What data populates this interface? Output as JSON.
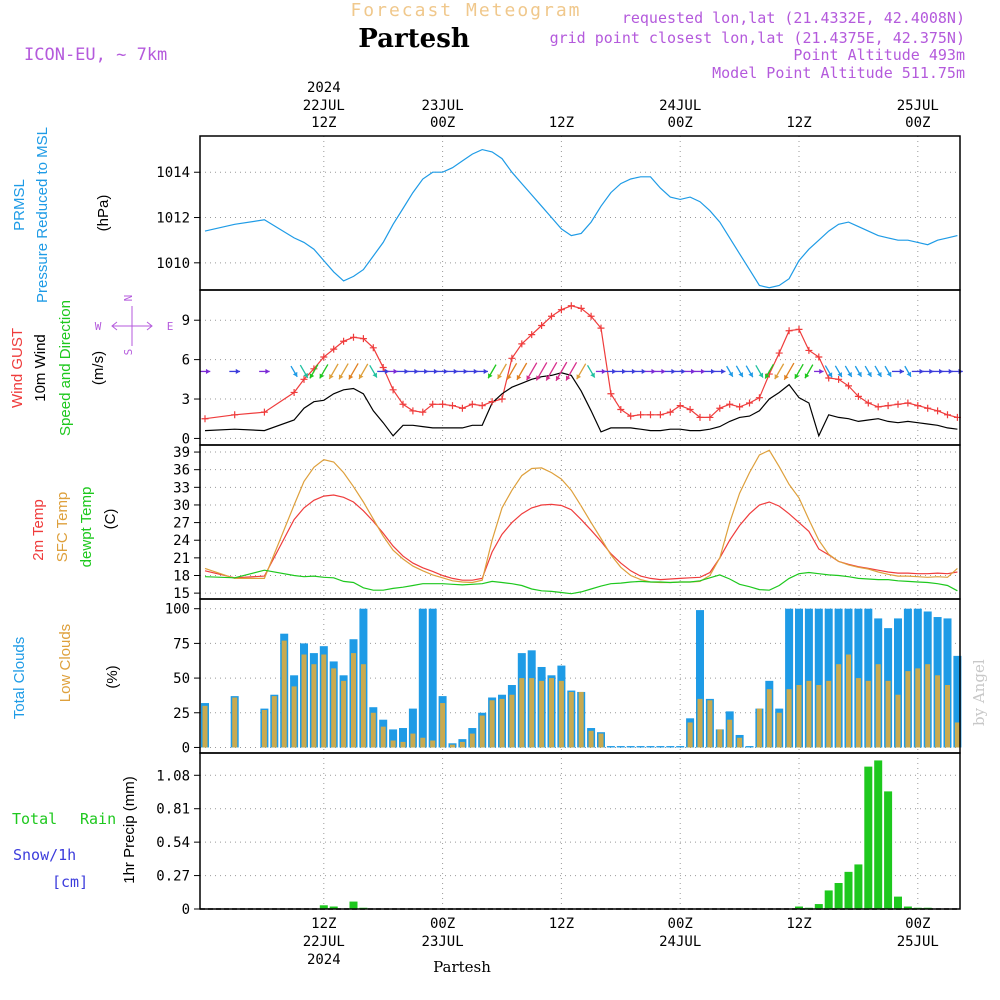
{
  "header": {
    "title": "Forecast Meteogram",
    "location": "Partesh",
    "model": "ICON-EU, ~ 7km",
    "requested": "requested lon,lat (21.4332E, 42.4008N)",
    "grid": "grid point closest lon,lat (21.4375E, 42.375N)",
    "point_alt": "Point Altitude 493m",
    "model_alt": "Model Point Altitude 511.75m",
    "watermark": "by Angel",
    "footer": "Partesh"
  },
  "colors": {
    "pressure": "#1e9be6",
    "gust": "#ef3c3c",
    "wind": "#000000",
    "temp2m": "#ef3c3c",
    "sfc": "#dea03c",
    "dewpt": "#1ec81e",
    "total_cloud": "#1e9be6",
    "low_cloud": "#c8aa50",
    "rain": "#1ec81e",
    "snow": "#3c3cdc",
    "header_purple": "#b45adc",
    "header_orange": "#f0c88c"
  },
  "time_axis": {
    "top_labels": [
      {
        "t": 12,
        "l1": "2024",
        "l2": "22JUL",
        "l3": "12Z"
      },
      {
        "t": 24,
        "l1": "",
        "l2": "23JUL",
        "l3": "00Z"
      },
      {
        "t": 36,
        "l1": "",
        "l2": "",
        "l3": "12Z"
      },
      {
        "t": 48,
        "l1": "",
        "l2": "24JUL",
        "l3": "00Z"
      },
      {
        "t": 60,
        "l1": "",
        "l2": "",
        "l3": "12Z"
      },
      {
        "t": 72,
        "l1": "",
        "l2": "25JUL",
        "l3": "00Z"
      }
    ],
    "bottom_labels": [
      {
        "t": 12,
        "l1": "12Z",
        "l2": "22JUL",
        "l3": "2024"
      },
      {
        "t": 24,
        "l1": "00Z",
        "l2": "23JUL",
        "l3": ""
      },
      {
        "t": 36,
        "l1": "12Z",
        "l2": "",
        "l3": ""
      },
      {
        "t": 48,
        "l1": "00Z",
        "l2": "24JUL",
        "l3": ""
      },
      {
        "t": 60,
        "l1": "12Z",
        "l2": "",
        "l3": ""
      },
      {
        "t": 72,
        "l1": "00Z",
        "l2": "25JUL",
        "l3": ""
      }
    ]
  },
  "panels": {
    "pressure": {
      "label1": "PRMSL",
      "label2": "Pressure Reduced to MSL",
      "unit": "(hPa)",
      "ticks": [
        1010,
        1012,
        1014
      ]
    },
    "wind": {
      "label_gust": "Wind GUST",
      "label_wind": "10m Wind",
      "label_dir": "Speed and Direction",
      "unit": "(m/s)",
      "ticks": [
        0,
        3,
        6,
        9
      ],
      "compass_n": "N",
      "compass_s": "S",
      "compass_w": "W",
      "compass_e": "E"
    },
    "temp": {
      "label1": "2m Temp",
      "label2": "SFC Temp",
      "label3": "dewpt Temp",
      "unit": "(C)",
      "ticks": [
        15,
        18,
        21,
        24,
        27,
        30,
        33,
        36,
        39
      ]
    },
    "clouds": {
      "label1": "Total Clouds",
      "label2": "Low Clouds",
      "unit": "(%)",
      "ticks": [
        0,
        25,
        50,
        75,
        100
      ]
    },
    "precip": {
      "label_total": "Total",
      "label_rain": "Rain",
      "label_snow": "Snow/1h",
      "label_cm": "[cm]",
      "ylabel": "1hr Precip (mm)",
      "ticks": [
        "0",
        "0.27",
        "0.54",
        "0.81",
        "1.08"
      ]
    }
  },
  "chart_data": [
    {
      "type": "line",
      "name": "PRMSL",
      "ylabel": "(hPa)",
      "ylim": [
        1008.8,
        1015.6
      ],
      "t": [
        0,
        3,
        6,
        9,
        10,
        11,
        12,
        13,
        14,
        15,
        16,
        17,
        18,
        19,
        20,
        21,
        22,
        23,
        24,
        25,
        26,
        27,
        28,
        29,
        30,
        31,
        32,
        33,
        34,
        35,
        36,
        37,
        38,
        39,
        40,
        41,
        42,
        43,
        44,
        45,
        46,
        47,
        48,
        49,
        50,
        51,
        52,
        53,
        54,
        55,
        56,
        57,
        58,
        59,
        60,
        61,
        62,
        63,
        64,
        65,
        66,
        67,
        68,
        69,
        70,
        71,
        72,
        73,
        74,
        75,
        76
      ],
      "values": [
        1011.4,
        1011.7,
        1011.9,
        1011.1,
        1010.9,
        1010.6,
        1010.1,
        1009.6,
        1009.2,
        1009.4,
        1009.7,
        1010.3,
        1010.9,
        1011.7,
        1012.4,
        1013.1,
        1013.7,
        1014.0,
        1014.0,
        1014.2,
        1014.5,
        1014.8,
        1015.0,
        1014.9,
        1014.6,
        1014.0,
        1013.5,
        1013.0,
        1012.5,
        1012.0,
        1011.5,
        1011.2,
        1011.3,
        1011.8,
        1012.5,
        1013.1,
        1013.5,
        1013.7,
        1013.8,
        1013.8,
        1013.3,
        1012.9,
        1012.8,
        1012.9,
        1012.7,
        1012.3,
        1011.8,
        1011.1,
        1010.4,
        1009.7,
        1009.0,
        1008.9,
        1009.0,
        1009.3,
        1010.1,
        1010.6,
        1011.0,
        1011.4,
        1011.7,
        1011.8,
        1011.6,
        1011.4,
        1011.2,
        1011.1,
        1011.0,
        1011.0,
        1010.9,
        1010.8,
        1011.0,
        1011.1,
        1011.2
      ]
    },
    {
      "type": "line",
      "name": "Wind GUST / 10m Wind",
      "ylabel": "(m/s)",
      "ylim": [
        -0.5,
        11.3
      ],
      "t": [
        0,
        3,
        6,
        9,
        10,
        11,
        12,
        13,
        14,
        15,
        16,
        17,
        18,
        19,
        20,
        21,
        22,
        23,
        24,
        25,
        26,
        27,
        28,
        29,
        30,
        31,
        32,
        33,
        34,
        35,
        36,
        37,
        38,
        39,
        40,
        41,
        42,
        43,
        44,
        45,
        46,
        47,
        48,
        49,
        50,
        51,
        52,
        53,
        54,
        55,
        56,
        57,
        58,
        59,
        60,
        61,
        62,
        63,
        64,
        65,
        66,
        67,
        68,
        69,
        70,
        71,
        72,
        73,
        74,
        75,
        76
      ],
      "series": [
        {
          "name": "Wind GUST",
          "values": [
            1.5,
            1.8,
            2.0,
            3.5,
            4.5,
            5.3,
            6.2,
            6.8,
            7.4,
            7.7,
            7.6,
            6.9,
            5.4,
            3.7,
            2.6,
            2.1,
            2.0,
            2.6,
            2.6,
            2.5,
            2.3,
            2.6,
            2.5,
            2.8,
            3.0,
            6.1,
            7.2,
            7.9,
            8.6,
            9.3,
            9.8,
            10.1,
            9.9,
            9.3,
            8.4,
            3.4,
            2.2,
            1.7,
            1.8,
            1.8,
            1.8,
            2.0,
            2.5,
            2.2,
            1.6,
            1.6,
            2.3,
            2.6,
            2.4,
            2.7,
            3.1,
            4.9,
            6.5,
            8.2,
            8.3,
            6.7,
            6.2,
            4.6,
            4.5,
            4.0,
            3.2,
            2.7,
            2.4,
            2.5,
            2.6,
            2.7,
            2.5,
            2.3,
            2.1,
            1.8,
            1.6
          ]
        },
        {
          "name": "10m Wind",
          "values": [
            0.6,
            0.7,
            0.6,
            1.4,
            2.3,
            2.8,
            2.9,
            3.4,
            3.7,
            3.8,
            3.4,
            2.1,
            1.2,
            0.2,
            1.0,
            1.0,
            0.9,
            0.8,
            0.8,
            0.8,
            0.8,
            1.0,
            1.0,
            2.7,
            3.4,
            3.9,
            4.2,
            4.5,
            4.7,
            4.8,
            5.0,
            4.8,
            3.6,
            2.1,
            0.5,
            0.8,
            0.8,
            0.8,
            0.7,
            0.6,
            0.6,
            0.7,
            0.7,
            0.6,
            0.6,
            0.7,
            0.9,
            1.3,
            1.6,
            1.7,
            2.1,
            3.0,
            3.5,
            4.1,
            3.1,
            2.7,
            0.2,
            1.8,
            1.6,
            1.5,
            1.3,
            1.4,
            1.5,
            1.3,
            1.2,
            1.3,
            1.2,
            1.1,
            1.0,
            0.8,
            0.7
          ]
        }
      ]
    },
    {
      "type": "line",
      "name": "Temperatures",
      "ylabel": "(C)",
      "ylim": [
        14.0,
        40.2
      ],
      "t": [
        0,
        3,
        6,
        9,
        10,
        11,
        12,
        13,
        14,
        15,
        16,
        17,
        18,
        19,
        20,
        21,
        22,
        23,
        24,
        25,
        26,
        27,
        28,
        29,
        30,
        31,
        32,
        33,
        34,
        35,
        36,
        37,
        38,
        39,
        40,
        41,
        42,
        43,
        44,
        45,
        46,
        47,
        48,
        49,
        50,
        51,
        52,
        53,
        54,
        55,
        56,
        57,
        58,
        59,
        60,
        61,
        62,
        63,
        64,
        65,
        66,
        67,
        68,
        69,
        70,
        71,
        72,
        73,
        74,
        75,
        76
      ],
      "series": [
        {
          "name": "2m Temp",
          "values": [
            18.8,
            17.6,
            17.9,
            27.5,
            29.5,
            30.8,
            31.5,
            31.7,
            31.3,
            30.5,
            29.0,
            27.2,
            25.2,
            23.0,
            21.3,
            20.1,
            19.3,
            18.7,
            18.0,
            17.5,
            17.2,
            17.2,
            17.5,
            22.0,
            25.0,
            27.0,
            28.5,
            29.5,
            30.0,
            30.1,
            29.9,
            29.2,
            27.5,
            25.7,
            23.8,
            21.7,
            20.1,
            18.8,
            17.9,
            17.5,
            17.3,
            17.4,
            17.5,
            17.6,
            17.7,
            18.5,
            21.0,
            24.0,
            26.5,
            28.5,
            30.0,
            30.5,
            29.8,
            28.5,
            27.0,
            25.5,
            22.5,
            21.5,
            20.4,
            19.9,
            19.5,
            19.2,
            18.9,
            18.6,
            18.4,
            18.4,
            18.3,
            18.3,
            18.4,
            18.3,
            18.6
          ]
        },
        {
          "name": "SFC Temp",
          "values": [
            19.2,
            17.5,
            17.5,
            30.0,
            34.0,
            36.4,
            37.7,
            37.3,
            35.5,
            33.1,
            30.5,
            27.6,
            24.7,
            22.3,
            20.8,
            19.6,
            18.8,
            18.1,
            17.6,
            17.1,
            16.9,
            16.8,
            17.2,
            24.0,
            29.5,
            32.5,
            35.0,
            36.2,
            36.3,
            35.5,
            34.4,
            32.5,
            29.8,
            27.0,
            24.3,
            21.5,
            19.4,
            18.0,
            17.3,
            16.9,
            16.8,
            16.8,
            16.9,
            16.9,
            17.0,
            18.0,
            21.0,
            27.0,
            32.0,
            35.5,
            38.5,
            39.3,
            36.5,
            33.5,
            31.2,
            27.5,
            24.0,
            21.6,
            20.4,
            19.8,
            19.4,
            19.1,
            18.6,
            18.2,
            17.9,
            17.9,
            17.8,
            17.7,
            17.8,
            17.7,
            19.2
          ]
        },
        {
          "name": "dewpt Temp",
          "values": [
            17.8,
            17.6,
            18.9,
            18.0,
            17.8,
            17.9,
            17.7,
            17.6,
            17.0,
            16.8,
            15.9,
            15.5,
            15.5,
            15.8,
            16.0,
            16.3,
            16.6,
            16.6,
            16.6,
            16.5,
            16.4,
            16.5,
            16.6,
            17.0,
            16.8,
            16.6,
            16.3,
            15.7,
            15.4,
            15.3,
            15.1,
            14.9,
            15.2,
            15.7,
            16.2,
            16.6,
            16.7,
            16.9,
            17.0,
            16.9,
            16.9,
            16.8,
            16.9,
            16.9,
            17.1,
            17.6,
            18.1,
            17.4,
            16.5,
            16.1,
            15.6,
            15.5,
            16.3,
            17.5,
            18.3,
            18.5,
            18.3,
            18.1,
            18.0,
            17.8,
            17.5,
            17.4,
            17.3,
            17.3,
            17.1,
            17.0,
            16.9,
            16.8,
            16.6,
            16.3,
            15.4
          ]
        }
      ]
    },
    {
      "type": "bar",
      "name": "Clouds",
      "ylabel": "(%)",
      "ylim": [
        -4,
        107
      ],
      "t": [
        0,
        3,
        6,
        7,
        8,
        9,
        10,
        11,
        12,
        13,
        14,
        15,
        16,
        17,
        18,
        19,
        20,
        21,
        22,
        23,
        24,
        25,
        26,
        27,
        28,
        29,
        30,
        31,
        32,
        33,
        34,
        35,
        36,
        37,
        38,
        39,
        40,
        41,
        42,
        43,
        44,
        45,
        46,
        47,
        48,
        49,
        50,
        51,
        52,
        53,
        54,
        55,
        56,
        57,
        58,
        59,
        60,
        61,
        62,
        63,
        64,
        65,
        66,
        67,
        68,
        69,
        70,
        71,
        72,
        73,
        74,
        75,
        76
      ],
      "series": [
        {
          "name": "Total Clouds",
          "values": [
            32,
            37,
            28,
            38,
            82,
            52,
            75,
            68,
            73,
            62,
            52,
            78,
            100,
            29,
            20,
            13,
            14,
            28,
            100,
            100,
            37,
            3,
            6,
            14,
            25,
            36,
            38,
            45,
            68,
            70,
            58,
            52,
            59,
            41,
            40,
            14,
            11,
            1,
            1,
            1,
            1,
            1,
            1,
            1,
            1,
            21,
            99,
            35,
            13,
            26,
            9,
            1,
            28,
            48,
            28,
            100,
            100,
            100,
            100,
            100,
            100,
            100,
            100,
            100,
            93,
            86,
            93,
            100,
            100,
            98,
            94,
            93,
            66
          ]
        },
        {
          "name": "Low Clouds",
          "values": [
            30,
            36,
            27,
            37,
            77,
            44,
            67,
            60,
            67,
            57,
            48,
            68,
            60,
            25,
            15,
            5,
            4,
            10,
            7,
            5,
            32,
            2,
            4,
            10,
            23,
            34,
            35,
            38,
            50,
            50,
            48,
            50,
            48,
            40,
            40,
            12,
            10,
            0,
            0,
            0,
            0,
            0,
            0,
            0,
            0,
            18,
            35,
            34,
            13,
            20,
            7,
            0,
            28,
            42,
            25,
            42,
            45,
            48,
            45,
            48,
            60,
            67,
            50,
            48,
            60,
            48,
            38,
            55,
            57,
            60,
            52,
            45,
            18
          ]
        }
      ]
    },
    {
      "type": "bar",
      "name": "1hr Precip",
      "ylabel": "1hr Precip (mm)",
      "ylim": [
        0,
        1.26
      ],
      "t": [
        12,
        13,
        15,
        16,
        60,
        61,
        62,
        63,
        64,
        65,
        66,
        67,
        68,
        69,
        70,
        71,
        72,
        73
      ],
      "values": [
        0.03,
        0.02,
        0.06,
        0.01,
        0.02,
        0.01,
        0.04,
        0.15,
        0.21,
        0.3,
        0.36,
        1.15,
        1.2,
        0.95,
        0.1,
        0.02,
        0.01,
        0.01
      ]
    }
  ]
}
